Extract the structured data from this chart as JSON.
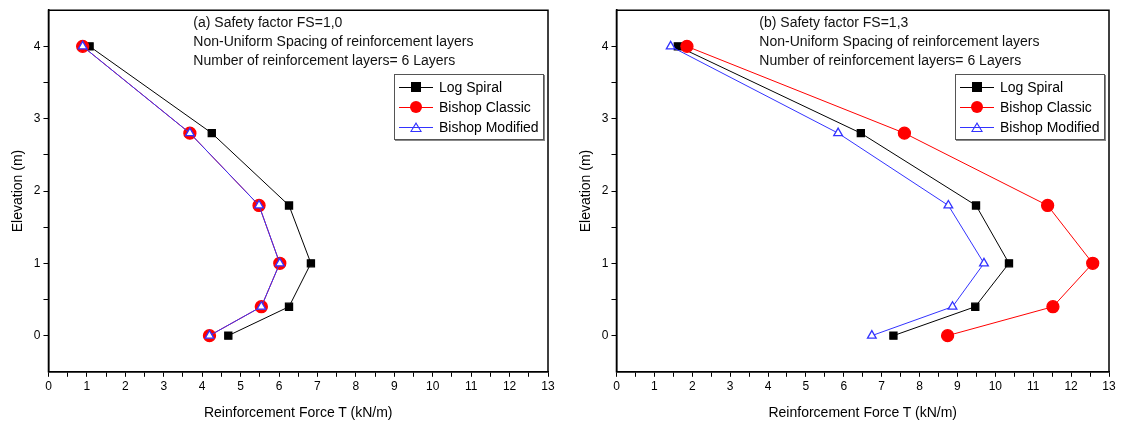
{
  "chart_data": [
    {
      "type": "line",
      "xlabel": "Reinforcement Force T (kN/m)",
      "ylabel": "Elevation (m)",
      "annotations": [
        "(a) Safety factor FS=1,0",
        "Non-Uniform Spacing of reinforcement layers",
        "Number of reinforcement layers= 6 Layers"
      ],
      "xlim": [
        0,
        13
      ],
      "xticks": [
        0,
        1,
        2,
        3,
        4,
        5,
        6,
        7,
        8,
        9,
        10,
        11,
        12,
        13,
        {
          "value": 0.5,
          "label": null
        },
        {
          "value": 1.5,
          "label": null
        },
        {
          "value": 2.5,
          "label": null
        },
        {
          "value": 3.5,
          "label": null
        },
        {
          "value": 4.5,
          "label": null
        },
        {
          "value": 5.5,
          "label": null
        },
        {
          "value": 6.5,
          "label": null
        },
        {
          "value": 7.5,
          "label": null
        },
        {
          "value": 8.5,
          "label": null
        },
        {
          "value": 9.5,
          "label": null
        },
        {
          "value": 10.5,
          "label": null
        },
        {
          "value": 11.5,
          "label": null
        },
        {
          "value": 12.5,
          "label": null
        }
      ],
      "ylim": [
        -0.5,
        4.5
      ],
      "yticks": [
        0,
        1,
        2,
        3,
        4,
        {
          "value": 0.5,
          "label": null
        },
        {
          "value": 1.5,
          "label": null
        },
        {
          "value": 2.5,
          "label": null
        },
        {
          "value": 3.5,
          "label": null
        }
      ],
      "legend": "top right",
      "grid": false,
      "series": [
        {
          "name": "Log Spiral",
          "color": "#000000",
          "marker": "square",
          "x": [
            1.07,
            4.25,
            6.26,
            6.83,
            6.26,
            4.68
          ],
          "values": [
            4,
            2.8,
            1.8,
            1,
            0.4,
            0
          ]
        },
        {
          "name": "Bishop Classic",
          "color": "#ff0000",
          "marker": "circle",
          "x": [
            0.89,
            3.68,
            5.48,
            6.02,
            5.54,
            4.19
          ],
          "values": [
            4,
            2.8,
            1.8,
            1,
            0.4,
            0
          ]
        },
        {
          "name": "Bishop Modified",
          "color": "#3333ff",
          "marker": "triangle",
          "x": [
            0.89,
            3.68,
            5.48,
            6.02,
            5.54,
            4.19
          ],
          "values": [
            4,
            2.8,
            1.8,
            1,
            0.4,
            0
          ]
        }
      ]
    },
    {
      "type": "line",
      "xlabel": "Reinforcement Force T (kN/m)",
      "ylabel": "Elevation (m)",
      "annotations": [
        "(b) Safety factor FS=1,3",
        "Non-Uniform Spacing of reinforcement layers",
        "Number of reinforcement layers= 6 Layers"
      ],
      "xlim": [
        0,
        13
      ],
      "xticks": [
        0,
        1,
        2,
        3,
        4,
        5,
        6,
        7,
        8,
        9,
        10,
        11,
        12,
        13,
        {
          "value": 0.5,
          "label": null
        },
        {
          "value": 1.5,
          "label": null
        },
        {
          "value": 2.5,
          "label": null
        },
        {
          "value": 3.5,
          "label": null
        },
        {
          "value": 4.5,
          "label": null
        },
        {
          "value": 5.5,
          "label": null
        },
        {
          "value": 6.5,
          "label": null
        },
        {
          "value": 7.5,
          "label": null
        },
        {
          "value": 8.5,
          "label": null
        },
        {
          "value": 9.5,
          "label": null
        },
        {
          "value": 10.5,
          "label": null
        },
        {
          "value": 11.5,
          "label": null
        },
        {
          "value": 12.5,
          "label": null
        }
      ],
      "ylim": [
        -0.5,
        4.5
      ],
      "yticks": [
        0,
        1,
        2,
        3,
        4,
        {
          "value": 0.5,
          "label": null
        },
        {
          "value": 1.5,
          "label": null
        },
        {
          "value": 2.5,
          "label": null
        },
        {
          "value": 3.5,
          "label": null
        }
      ],
      "legend": "top right",
      "grid": false,
      "series": [
        {
          "name": "Log Spiral",
          "color": "#000000",
          "marker": "square",
          "x": [
            1.62,
            6.45,
            9.49,
            10.36,
            9.47,
            7.31
          ],
          "values": [
            4,
            2.8,
            1.8,
            1,
            0.4,
            0
          ]
        },
        {
          "name": "Bishop Classic",
          "color": "#ff0000",
          "marker": "circle",
          "x": [
            1.86,
            7.6,
            11.38,
            12.57,
            11.52,
            8.74
          ],
          "values": [
            4,
            2.8,
            1.8,
            1,
            0.4,
            0
          ]
        },
        {
          "name": "Bishop Modified",
          "color": "#3333ff",
          "marker": "triangle",
          "x": [
            1.43,
            5.85,
            8.76,
            9.7,
            8.87,
            6.74
          ],
          "values": [
            4,
            2.8,
            1.8,
            1,
            0.4,
            0
          ]
        }
      ]
    }
  ]
}
